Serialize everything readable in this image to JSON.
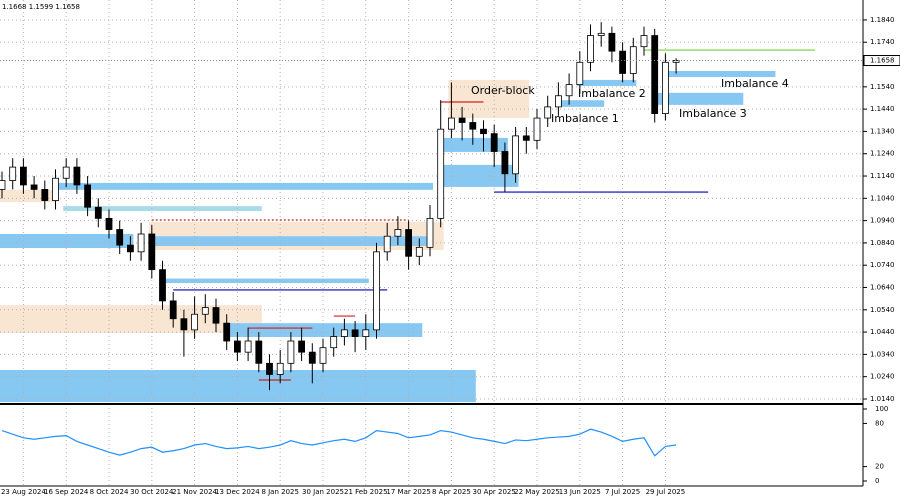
{
  "chart_data": {
    "type": "candlestick",
    "header": "1.1668 1.1599 1.1658",
    "categories": [
      null,
      null,
      "23 Aug 2024",
      null,
      null,
      null,
      "16 Sep 2024",
      null,
      null,
      null,
      "8 Oct 2024",
      null,
      null,
      null,
      "30 Oct 2024",
      null,
      null,
      null,
      "21 Nov 2024",
      null,
      null,
      null,
      "13 Dec 2024",
      null,
      null,
      null,
      "8 Jan 2025",
      null,
      null,
      null,
      "30 Jan 2025",
      null,
      null,
      null,
      "21 Feb 2025",
      null,
      null,
      null,
      "17 Mar 2025",
      null,
      null,
      null,
      "8 Apr 2025",
      null,
      null,
      null,
      "30 Apr 2025",
      null,
      null,
      null,
      "22 May 2025",
      null,
      null,
      null,
      "13 Jun 2025",
      null,
      null,
      null,
      "7 Jul 2025",
      null,
      null,
      null,
      "29 Jul 2025",
      null
    ],
    "open": [
      1.108,
      1.112,
      1.118,
      1.11,
      1.108,
      1.103,
      1.113,
      1.118,
      1.11,
      1.1,
      1.095,
      1.09,
      1.083,
      1.08,
      1.088,
      1.072,
      1.058,
      1.05,
      1.045,
      1.052,
      1.055,
      1.048,
      1.04,
      1.035,
      1.04,
      1.03,
      1.025,
      1.03,
      1.04,
      1.035,
      1.03,
      1.037,
      1.042,
      1.045,
      1.042,
      1.045,
      1.08,
      1.087,
      1.09,
      1.078,
      1.082,
      1.095,
      1.135,
      1.14,
      1.138,
      1.135,
      1.133,
      1.125,
      1.115,
      1.132,
      1.13,
      1.14,
      1.145,
      1.15,
      1.155,
      1.165,
      1.177,
      1.178,
      1.17,
      1.16,
      1.172,
      1.177,
      1.142,
      1.165
    ],
    "high": [
      1.116,
      1.122,
      1.122,
      1.114,
      1.112,
      1.117,
      1.122,
      1.122,
      1.114,
      1.104,
      1.099,
      1.094,
      1.087,
      1.093,
      1.092,
      1.076,
      1.062,
      1.054,
      1.06,
      1.061,
      1.059,
      1.052,
      1.044,
      1.046,
      1.044,
      1.034,
      1.036,
      1.044,
      1.046,
      1.039,
      1.041,
      1.046,
      1.05,
      1.049,
      1.052,
      1.084,
      1.093,
      1.096,
      1.094,
      1.086,
      1.101,
      1.148,
      1.156,
      1.145,
      1.142,
      1.139,
      1.137,
      1.129,
      1.136,
      1.136,
      1.144,
      1.15,
      1.156,
      1.16,
      1.17,
      1.182,
      1.183,
      1.181,
      1.174,
      1.176,
      1.181,
      1.18,
      1.169,
      1.1668
    ],
    "low": [
      1.104,
      1.108,
      1.106,
      1.104,
      1.099,
      1.099,
      1.109,
      1.106,
      1.096,
      1.091,
      1.086,
      1.079,
      1.076,
      1.076,
      1.068,
      1.054,
      1.046,
      1.033,
      1.041,
      1.048,
      1.044,
      1.036,
      1.031,
      1.031,
      1.026,
      1.018,
      1.021,
      1.026,
      1.031,
      1.021,
      1.026,
      1.033,
      1.038,
      1.035,
      1.036,
      1.041,
      1.076,
      1.083,
      1.072,
      1.074,
      1.078,
      1.091,
      1.131,
      1.13,
      1.128,
      1.125,
      1.118,
      1.107,
      1.111,
      1.124,
      1.126,
      1.136,
      1.141,
      1.146,
      1.151,
      1.161,
      1.172,
      1.165,
      1.156,
      1.156,
      1.168,
      1.138,
      1.139,
      1.1599
    ],
    "close": [
      1.112,
      1.118,
      1.11,
      1.108,
      1.103,
      1.113,
      1.118,
      1.11,
      1.1,
      1.095,
      1.09,
      1.083,
      1.08,
      1.088,
      1.072,
      1.058,
      1.05,
      1.045,
      1.052,
      1.055,
      1.048,
      1.04,
      1.035,
      1.04,
      1.03,
      1.025,
      1.03,
      1.04,
      1.035,
      1.03,
      1.037,
      1.042,
      1.045,
      1.042,
      1.045,
      1.08,
      1.087,
      1.09,
      1.078,
      1.082,
      1.095,
      1.135,
      1.14,
      1.138,
      1.135,
      1.133,
      1.125,
      1.115,
      1.132,
      1.13,
      1.14,
      1.145,
      1.15,
      1.155,
      1.165,
      1.177,
      1.178,
      1.17,
      1.16,
      1.172,
      1.177,
      1.142,
      1.165,
      1.1658
    ],
    "ylim": [
      1.0122,
      1.1907
    ],
    "yticks": [
      {
        "value": 1.184,
        "label": "1.1840"
      },
      {
        "value": 1.174,
        "label": "1.1740"
      },
      {
        "value": 1.154,
        "label": "1.1540"
      },
      {
        "value": 1.144,
        "label": "1.1440"
      },
      {
        "value": 1.134,
        "label": "1.1340"
      },
      {
        "value": 1.124,
        "label": "1.1240"
      },
      {
        "value": 1.114,
        "label": "1.1140"
      },
      {
        "value": 1.104,
        "label": "1.1040"
      },
      {
        "value": 1.094,
        "label": "1.0940"
      },
      {
        "value": 1.084,
        "label": "1.0840"
      },
      {
        "value": 1.074,
        "label": "1.0740"
      },
      {
        "value": 1.064,
        "label": "1.0640"
      },
      {
        "value": 1.054,
        "label": "1.0540"
      },
      {
        "value": 1.044,
        "label": "1.0440"
      },
      {
        "value": 1.034,
        "label": "1.0340"
      },
      {
        "value": 1.024,
        "label": "1.0240"
      },
      {
        "value": 1.014,
        "label": "1.0140"
      }
    ],
    "grid": true,
    "zones": [
      {
        "range": [
          1.1023,
          1.1078
        ],
        "span": [
          0,
          5
        ],
        "color": "#f8e6d2"
      },
      {
        "range": [
          1.0808,
          1.0934
        ],
        "span": [
          14,
          41
        ],
        "color": "#f8e6d2"
      },
      {
        "range": [
          1.0436,
          1.0561
        ],
        "span": [
          0,
          24
        ],
        "color": "#f8e6d2"
      },
      {
        "range": [
          1.14,
          1.1571
        ],
        "span": [
          42,
          49
        ],
        "color": "#f8e6d2"
      },
      {
        "range": [
          1.1078,
          1.1109
        ],
        "span": [
          5,
          40
        ],
        "color": "#87c8f2"
      },
      {
        "range": [
          1.0983,
          1.1005
        ],
        "span": [
          6,
          24
        ],
        "color": "#a9dbe6"
      },
      {
        "range": [
          1.0817,
          1.088
        ],
        "span": [
          0,
          12
        ],
        "color": "#87c8f2"
      },
      {
        "range": [
          1.0826,
          1.087
        ],
        "span": [
          14,
          40
        ],
        "color": "#87c8f2"
      },
      {
        "range": [
          1.066,
          1.068
        ],
        "span": [
          15,
          34
        ],
        "color": "#87c8f2"
      },
      {
        "range": [
          1.0418,
          1.048
        ],
        "span": [
          21,
          39
        ],
        "color": "#87c8f2"
      },
      {
        "range": [
          1.0126,
          1.027
        ],
        "span": [
          0,
          44
        ],
        "color": "#87c8f2"
      },
      {
        "range": [
          1.1248,
          1.1311
        ],
        "span": [
          41,
          47
        ],
        "color": "#87c8f2"
      },
      {
        "range": [
          1.1091,
          1.119
        ],
        "span": [
          41,
          48
        ],
        "color": "#87c8f2"
      },
      {
        "range": [
          1.145,
          1.148
        ],
        "span": [
          52,
          56
        ],
        "color": "#87c8f2"
      },
      {
        "range": [
          1.1544,
          1.1571
        ],
        "span": [
          54,
          59
        ],
        "color": "#87c8f2"
      },
      {
        "range": [
          1.1459,
          1.1513
        ],
        "span": [
          61,
          69
        ],
        "color": "#87c8f2"
      },
      {
        "range": [
          1.1584,
          1.1611
        ],
        "span": [
          62,
          72
        ],
        "color": "#87c8f2"
      }
    ],
    "levels": [
      {
        "value": 1.0943,
        "span": [
          14,
          38
        ],
        "color": "#d02020",
        "dashed": true
      },
      {
        "value": 1.1068,
        "span": [
          46,
          66
        ],
        "color": "#0000b0",
        "dashed": false
      },
      {
        "value": 1.0629,
        "span": [
          16,
          36
        ],
        "color": "#0000b0",
        "dashed": false
      },
      {
        "value": 1.1705,
        "span": [
          60,
          76
        ],
        "color": "#70d040",
        "dashed": false
      },
      {
        "value": 1.1472,
        "span": [
          41,
          45
        ],
        "color": "#d02020",
        "dashed": false
      },
      {
        "value": 1.0458,
        "span": [
          23,
          29
        ],
        "color": "#d02020",
        "dashed": false
      },
      {
        "value": 1.0512,
        "span": [
          31,
          33
        ],
        "color": "#d02020",
        "dashed": false
      },
      {
        "value": 1.0225,
        "span": [
          24,
          27
        ],
        "color": "#d02020",
        "dashed": false
      }
    ],
    "annotations": [
      "Order-block",
      "Imbalance 1",
      "Imbalance 2",
      "Imbalance 3",
      "Imbalance 4"
    ],
    "rsi": {
      "type": "line",
      "color": "#1e90ff",
      "ylim": [
        0,
        100
      ],
      "yticks": [
        100,
        80,
        20,
        0
      ],
      "values": [
        70,
        65,
        60,
        58,
        60,
        62,
        63,
        55,
        50,
        45,
        40,
        36,
        40,
        45,
        47,
        40,
        42,
        45,
        50,
        52,
        48,
        45,
        46,
        48,
        45,
        47,
        50,
        56,
        52,
        50,
        53,
        56,
        58,
        55,
        60,
        70,
        68,
        66,
        60,
        62,
        64,
        70,
        68,
        64,
        60,
        58,
        55,
        52,
        57,
        56,
        58,
        60,
        61,
        62,
        65,
        72,
        68,
        62,
        55,
        58,
        60,
        35,
        48,
        50
      ]
    }
  }
}
